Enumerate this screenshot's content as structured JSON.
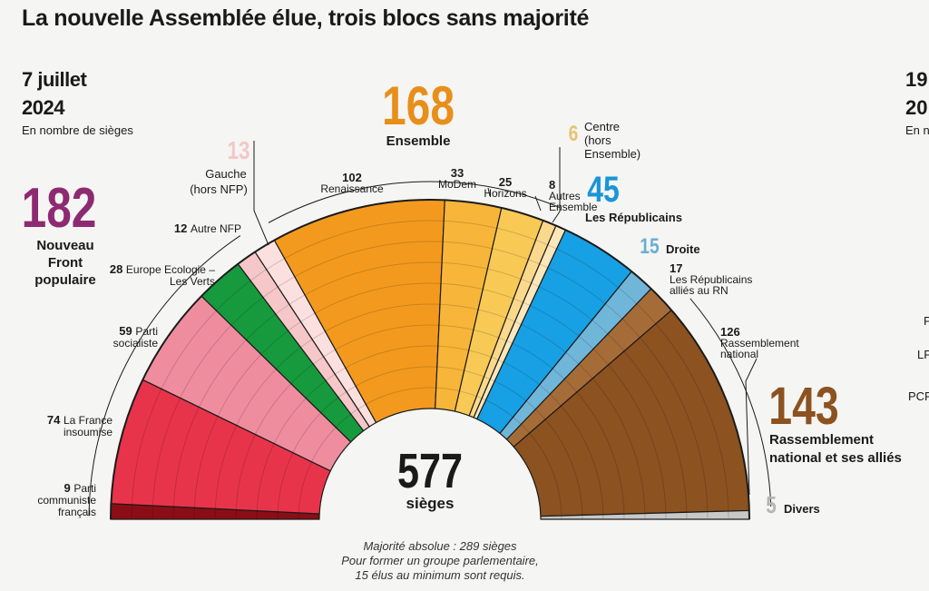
{
  "header": {
    "title": "La nouvelle Assemblée élue, trois blocs sans majorité",
    "date_day": "7 juillet",
    "date_year": "2024",
    "unit": "En nombre de sièges",
    "right_date_day": "19",
    "right_date_year": "20",
    "right_unit": "En n",
    "right_cut_labels": [
      "P",
      "LFI",
      "PCF"
    ]
  },
  "chart_data": {
    "type": "parliament",
    "total": 577,
    "total_label": "sièges",
    "parties": [
      {
        "name": "Parti communiste français",
        "label_bold": "9",
        "label_rest": [
          "Parti",
          "communiste",
          "français"
        ],
        "value": 9,
        "color": "#8b0e16"
      },
      {
        "name": "La France insoumise",
        "label_bold": "74",
        "label_rest": [
          "La France",
          "insoumise"
        ],
        "value": 74,
        "color": "#e8344a"
      },
      {
        "name": "Parti socialiste",
        "label_bold": "59",
        "label_rest": [
          "Parti",
          "socialiste"
        ],
        "value": 59,
        "color": "#ef8d9f"
      },
      {
        "name": "Europe Ecologie – Les Verts",
        "label_bold": "28",
        "label_rest": [
          "Europe Ecologie –",
          "Les Verts"
        ],
        "value": 28,
        "color": "#179a3e"
      },
      {
        "name": "Autre NFP",
        "label_bold": "12",
        "label_rest": [
          "Autre NFP"
        ],
        "value": 12,
        "color": "#f6c7c8"
      },
      {
        "name": "Gauche (hors NFP)",
        "label_bold": "",
        "label_rest": [],
        "value": 13,
        "color": "#fbe0df"
      },
      {
        "name": "Renaissance",
        "label_bold": "102",
        "label_rest": [
          "Renaissance"
        ],
        "value": 102,
        "color": "#f39a1e"
      },
      {
        "name": "MoDem",
        "label_bold": "33",
        "label_rest": [
          "MoDem"
        ],
        "value": 33,
        "color": "#f7b63a"
      },
      {
        "name": "Horizons",
        "label_bold": "25",
        "label_rest": [
          "Horizons"
        ],
        "value": 25,
        "color": "#f9c955"
      },
      {
        "name": "Autres Ensemble",
        "label_bold": "8",
        "label_rest": [
          "Autres",
          "Ensemble"
        ],
        "value": 8,
        "color": "#fbd98c"
      },
      {
        "name": "Centre (hors Ensemble)",
        "label_bold": "",
        "label_rest": [],
        "value": 6,
        "color": "#fce7bc"
      },
      {
        "name": "Les Républicains",
        "label_bold": "",
        "label_rest": [],
        "value": 45,
        "color": "#17a0e3"
      },
      {
        "name": "Droite",
        "label_bold": "",
        "label_rest": [],
        "value": 15,
        "color": "#70b6d9"
      },
      {
        "name": "Les Républicains alliés au RN",
        "label_bold": "17",
        "label_rest": [
          "Les Républicains",
          "alliés au RN"
        ],
        "value": 17,
        "color": "#a66c38"
      },
      {
        "name": "Rassemblement national",
        "label_bold": "126",
        "label_rest": [
          "Rassemblement",
          "national"
        ],
        "value": 126,
        "color": "#8c5220"
      },
      {
        "name": "Divers",
        "label_bold": "",
        "label_rest": [],
        "value": 5,
        "color": "#c8c8c8"
      }
    ],
    "blocs": [
      {
        "value": "182",
        "label": [
          "Nouveau",
          "Front",
          "populaire"
        ],
        "color": "#8e2a72"
      },
      {
        "value": "13",
        "label": [
          "Gauche",
          "(hors NFP)"
        ],
        "color": "#f4c7c7"
      },
      {
        "value": "168",
        "label": [
          "Ensemble"
        ],
        "color": "#e88f1b"
      },
      {
        "value": "6",
        "label": [
          "Centre",
          "(hors",
          "Ensemble)"
        ],
        "color": "#e9c271"
      },
      {
        "value": "45",
        "label": [
          "Les Républicains"
        ],
        "color": "#1a95d8"
      },
      {
        "value": "15",
        "label": [
          "Droite"
        ],
        "color": "#6aaed3"
      },
      {
        "value": "143",
        "label": [
          "Rassemblement",
          "national et ses alliés"
        ],
        "color": "#8c5220"
      },
      {
        "value": "5",
        "label": [
          "Divers"
        ],
        "color": "#b5b5b5"
      }
    ]
  },
  "note": [
    "Majorité absolue : 289 sièges",
    "Pour former un groupe parlementaire,",
    "15 élus au minimum sont requis."
  ]
}
